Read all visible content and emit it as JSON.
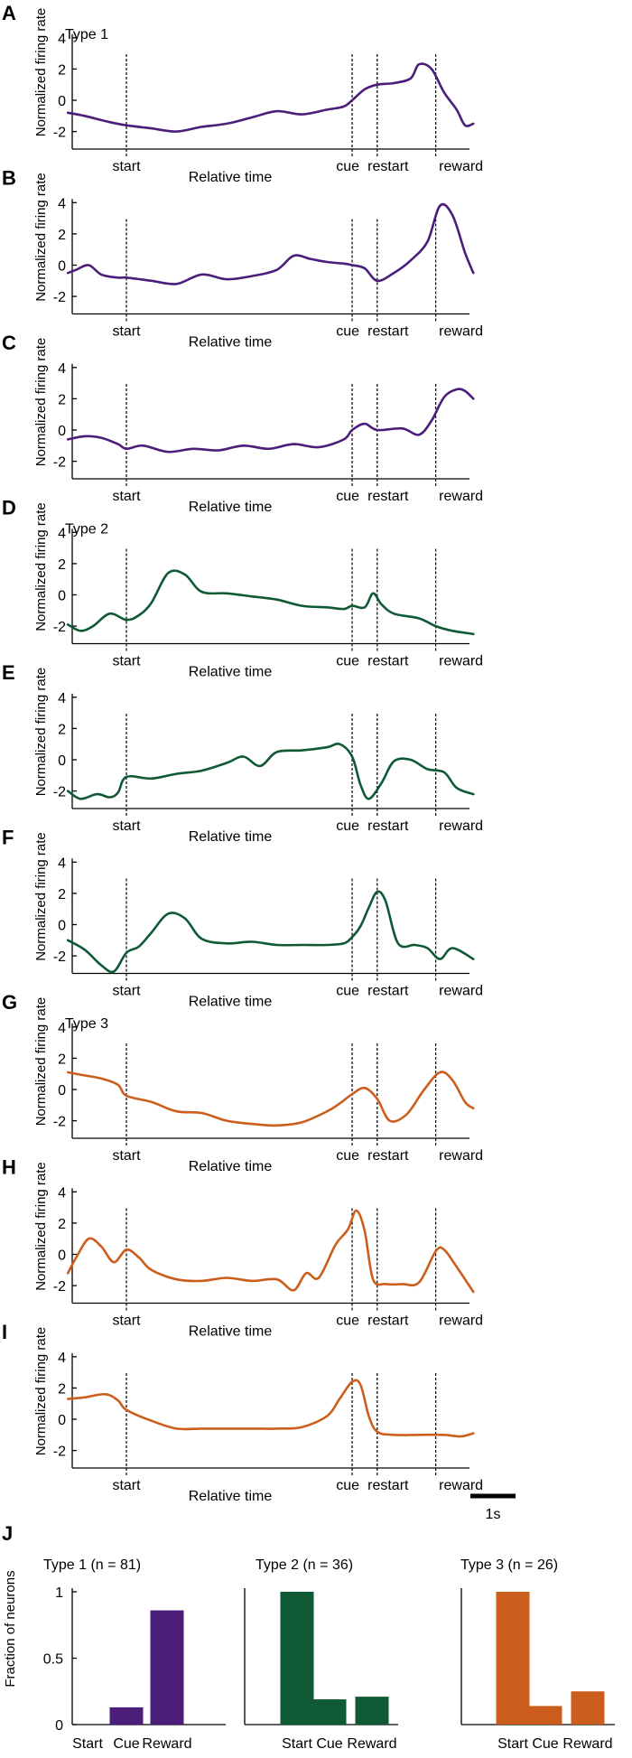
{
  "colors": {
    "type1": "#4b1e7a",
    "type2": "#0f5a35",
    "type3": "#cc5e1d"
  },
  "common": {
    "ylabel": "Normalized firing rate",
    "xlabel": "Relative time",
    "events": [
      "start",
      "cue",
      "restart",
      "reward"
    ],
    "yticks": [
      "4",
      "2",
      "0",
      "-2"
    ]
  },
  "panels": [
    {
      "label": "A",
      "type_label": "Type 1",
      "color_key": "type1"
    },
    {
      "label": "B",
      "type_label": "",
      "color_key": "type1"
    },
    {
      "label": "C",
      "type_label": "",
      "color_key": "type1"
    },
    {
      "label": "D",
      "type_label": "Type 2",
      "color_key": "type2"
    },
    {
      "label": "E",
      "type_label": "",
      "color_key": "type2"
    },
    {
      "label": "F",
      "type_label": "",
      "color_key": "type2"
    },
    {
      "label": "G",
      "type_label": "Type 3",
      "color_key": "type3"
    },
    {
      "label": "H",
      "type_label": "",
      "color_key": "type3"
    },
    {
      "label": "I",
      "type_label": "",
      "color_key": "type3"
    }
  ],
  "scalebar_label": "1s",
  "bar_section": {
    "label": "J",
    "ylabel": "Fraction of neurons",
    "yticks": [
      "1",
      "0.5",
      "0"
    ]
  },
  "chart_data": [
    {
      "type": "line",
      "panel": "A",
      "title": "Type 1",
      "xlabel": "Relative time",
      "ylabel": "Normalized firing rate",
      "ylim": [
        -3.2,
        4.3
      ],
      "event_times": {
        "start": 0,
        "cue": 2.7,
        "restart": 3.0,
        "reward": 3.7
      },
      "x": [
        -0.7,
        -0.5,
        -0.2,
        0.0,
        0.3,
        0.6,
        0.9,
        1.2,
        1.5,
        1.8,
        2.1,
        2.4,
        2.6,
        2.7,
        2.85,
        3.0,
        3.2,
        3.4,
        3.5,
        3.65,
        3.8,
        3.95,
        4.05,
        4.15
      ],
      "values": [
        -0.8,
        -1.0,
        -1.4,
        -1.6,
        -1.8,
        -2.0,
        -1.7,
        -1.5,
        -1.1,
        -0.7,
        -0.9,
        -0.6,
        -0.4,
        0.0,
        0.7,
        1.0,
        1.1,
        1.4,
        2.3,
        2.0,
        0.5,
        -0.6,
        -1.6,
        -1.5
      ]
    },
    {
      "type": "line",
      "panel": "B",
      "xlabel": "Relative time",
      "ylabel": "Normalized firing rate",
      "ylim": [
        -3.2,
        4.3
      ],
      "event_times": {
        "start": 0,
        "cue": 2.7,
        "restart": 3.0,
        "reward": 3.7
      },
      "x": [
        -0.7,
        -0.6,
        -0.45,
        -0.3,
        -0.1,
        0.0,
        0.3,
        0.6,
        0.9,
        1.2,
        1.5,
        1.8,
        2.0,
        2.2,
        2.4,
        2.6,
        2.7,
        2.85,
        3.0,
        3.2,
        3.4,
        3.6,
        3.75,
        3.9,
        4.05,
        4.15
      ],
      "values": [
        -0.5,
        -0.3,
        0.0,
        -0.6,
        -0.8,
        -0.8,
        -1.0,
        -1.2,
        -0.6,
        -0.9,
        -0.7,
        -0.3,
        0.6,
        0.4,
        0.2,
        0.1,
        0.0,
        -0.2,
        -1.0,
        -0.5,
        0.3,
        1.5,
        3.8,
        3.2,
        0.8,
        -0.5
      ]
    },
    {
      "type": "line",
      "panel": "C",
      "xlabel": "Relative time",
      "ylabel": "Normalized firing rate",
      "ylim": [
        -3.2,
        4.3
      ],
      "event_times": {
        "start": 0,
        "cue": 2.7,
        "restart": 3.0,
        "reward": 3.7
      },
      "x": [
        -0.7,
        -0.5,
        -0.3,
        -0.1,
        0.0,
        0.2,
        0.5,
        0.8,
        1.1,
        1.4,
        1.7,
        2.0,
        2.3,
        2.6,
        2.7,
        2.85,
        3.0,
        3.3,
        3.5,
        3.65,
        3.8,
        3.95,
        4.05,
        4.15
      ],
      "values": [
        -0.6,
        -0.4,
        -0.5,
        -0.9,
        -1.2,
        -1.0,
        -1.4,
        -1.2,
        -1.3,
        -1.0,
        -1.2,
        -0.9,
        -1.1,
        -0.6,
        0.0,
        0.4,
        0.0,
        0.1,
        -0.3,
        0.6,
        2.1,
        2.6,
        2.5,
        2.0
      ]
    },
    {
      "type": "line",
      "panel": "D",
      "title": "Type 2",
      "xlabel": "Relative time",
      "ylabel": "Normalized firing rate",
      "ylim": [
        -3.2,
        4.3
      ],
      "event_times": {
        "start": 0,
        "cue": 2.7,
        "restart": 3.0,
        "reward": 3.7
      },
      "x": [
        -0.7,
        -0.55,
        -0.4,
        -0.2,
        0.0,
        0.15,
        0.3,
        0.5,
        0.7,
        0.9,
        1.2,
        1.5,
        1.8,
        2.1,
        2.4,
        2.6,
        2.7,
        2.85,
        2.95,
        3.05,
        3.2,
        3.5,
        3.7,
        3.9,
        4.15
      ],
      "values": [
        -1.9,
        -2.3,
        -2.0,
        -1.2,
        -1.6,
        -1.3,
        -0.5,
        1.4,
        1.3,
        0.2,
        0.1,
        -0.1,
        -0.3,
        -0.7,
        -0.8,
        -0.9,
        -0.7,
        -0.8,
        0.1,
        -0.6,
        -1.2,
        -1.5,
        -2.0,
        -2.3,
        -2.5
      ]
    },
    {
      "type": "line",
      "panel": "E",
      "xlabel": "Relative time",
      "ylabel": "Normalized firing rate",
      "ylim": [
        -3.2,
        4.3
      ],
      "event_times": {
        "start": 0,
        "cue": 2.7,
        "restart": 3.0,
        "reward": 3.7
      },
      "x": [
        -0.7,
        -0.55,
        -0.35,
        -0.2,
        -0.1,
        0.0,
        0.3,
        0.6,
        0.9,
        1.2,
        1.4,
        1.6,
        1.8,
        2.1,
        2.4,
        2.55,
        2.7,
        2.8,
        2.9,
        3.05,
        3.2,
        3.4,
        3.6,
        3.8,
        3.95,
        4.15
      ],
      "values": [
        -2.0,
        -2.5,
        -2.2,
        -2.4,
        -2.1,
        -1.1,
        -1.2,
        -0.9,
        -0.7,
        -0.2,
        0.2,
        -0.4,
        0.5,
        0.6,
        0.8,
        1.0,
        0.2,
        -1.6,
        -2.5,
        -1.5,
        -0.1,
        0.0,
        -0.6,
        -0.8,
        -1.8,
        -2.2
      ]
    },
    {
      "type": "line",
      "panel": "F",
      "xlabel": "Relative time",
      "ylabel": "Normalized firing rate",
      "ylim": [
        -3.2,
        4.3
      ],
      "event_times": {
        "start": 0,
        "cue": 2.7,
        "restart": 3.0,
        "reward": 3.7
      },
      "x": [
        -0.7,
        -0.5,
        -0.3,
        -0.15,
        0.0,
        0.15,
        0.3,
        0.5,
        0.7,
        0.9,
        1.2,
        1.5,
        1.8,
        2.1,
        2.4,
        2.6,
        2.7,
        2.8,
        2.9,
        3.0,
        3.1,
        3.25,
        3.45,
        3.6,
        3.75,
        3.9,
        4.15
      ],
      "values": [
        -1.0,
        -1.6,
        -2.6,
        -3.0,
        -1.8,
        -1.4,
        -0.5,
        0.7,
        0.4,
        -0.9,
        -1.2,
        -1.1,
        -1.3,
        -1.3,
        -1.3,
        -1.2,
        -0.8,
        -0.1,
        1.1,
        2.1,
        1.5,
        -1.2,
        -1.3,
        -1.5,
        -2.2,
        -1.5,
        -2.2
      ]
    },
    {
      "type": "line",
      "panel": "G",
      "title": "Type 3",
      "xlabel": "Relative time",
      "ylabel": "Normalized firing rate",
      "ylim": [
        -3.2,
        4.3
      ],
      "event_times": {
        "start": 0,
        "cue": 2.7,
        "restart": 3.0,
        "reward": 3.7
      },
      "x": [
        -0.7,
        -0.5,
        -0.3,
        -0.1,
        0.0,
        0.3,
        0.6,
        0.9,
        1.2,
        1.5,
        1.8,
        2.1,
        2.4,
        2.55,
        2.7,
        2.85,
        3.0,
        3.15,
        3.35,
        3.55,
        3.75,
        3.9,
        4.05,
        4.15
      ],
      "values": [
        1.1,
        0.9,
        0.7,
        0.3,
        -0.4,
        -0.8,
        -1.4,
        -1.5,
        -2.0,
        -2.2,
        -2.3,
        -2.1,
        -1.4,
        -0.9,
        -0.3,
        0.1,
        -0.6,
        -2.0,
        -1.6,
        -0.1,
        1.1,
        0.6,
        -0.8,
        -1.2
      ]
    },
    {
      "type": "line",
      "panel": "H",
      "xlabel": "Relative time",
      "ylabel": "Normalized firing rate",
      "ylim": [
        -3.2,
        4.3
      ],
      "event_times": {
        "start": 0,
        "cue": 2.7,
        "restart": 3.0,
        "reward": 3.7
      },
      "x": [
        -0.7,
        -0.6,
        -0.45,
        -0.3,
        -0.15,
        0.0,
        0.15,
        0.3,
        0.6,
        0.9,
        1.2,
        1.5,
        1.8,
        2.0,
        2.15,
        2.3,
        2.5,
        2.65,
        2.75,
        2.85,
        2.95,
        3.1,
        3.3,
        3.5,
        3.7,
        3.8,
        3.95,
        4.15
      ],
      "values": [
        -1.2,
        -0.2,
        1.0,
        0.5,
        -0.5,
        0.3,
        -0.2,
        -1.0,
        -1.6,
        -1.7,
        -1.5,
        -1.7,
        -1.6,
        -2.3,
        -1.2,
        -1.5,
        0.6,
        1.6,
        2.8,
        1.5,
        -1.6,
        -1.9,
        -1.9,
        -1.8,
        0.2,
        0.3,
        -0.8,
        -2.4
      ]
    },
    {
      "type": "line",
      "panel": "I",
      "xlabel": "Relative time",
      "ylabel": "Normalized firing rate",
      "ylim": [
        -3.2,
        4.3
      ],
      "event_times": {
        "start": 0,
        "cue": 2.7,
        "restart": 3.0,
        "reward": 3.7
      },
      "x": [
        -0.7,
        -0.5,
        -0.25,
        -0.1,
        0.0,
        0.3,
        0.6,
        0.9,
        1.2,
        1.5,
        1.8,
        2.1,
        2.4,
        2.55,
        2.7,
        2.8,
        2.9,
        3.0,
        3.2,
        3.5,
        3.8,
        4.0,
        4.15
      ],
      "values": [
        1.3,
        1.4,
        1.6,
        1.2,
        0.6,
        -0.1,
        -0.6,
        -0.6,
        -0.6,
        -0.6,
        -0.6,
        -0.5,
        0.2,
        1.3,
        2.4,
        2.2,
        0.2,
        -0.8,
        -1.0,
        -1.0,
        -1.0,
        -1.1,
        -0.9
      ]
    },
    {
      "type": "bar",
      "panel": "J",
      "title": "Type 1 (n = 81)",
      "categories": [
        "Start",
        "Cue",
        "Reward"
      ],
      "values": [
        0.0,
        0.13,
        0.86
      ],
      "ylabel": "Fraction of neurons",
      "ylim": [
        0,
        1
      ]
    },
    {
      "type": "bar",
      "panel": "J",
      "title": "Type 2 (n = 36)",
      "categories": [
        "Start",
        "Cue",
        "Reward"
      ],
      "values": [
        1.0,
        0.19,
        0.21
      ],
      "ylabel": "Fraction of neurons",
      "ylim": [
        0,
        1
      ]
    },
    {
      "type": "bar",
      "panel": "J",
      "title": "Type 3 (n = 26)",
      "categories": [
        "Start",
        "Cue",
        "Reward"
      ],
      "values": [
        1.0,
        0.14,
        0.25
      ],
      "ylabel": "Fraction of neurons",
      "ylim": [
        0,
        1
      ]
    }
  ]
}
